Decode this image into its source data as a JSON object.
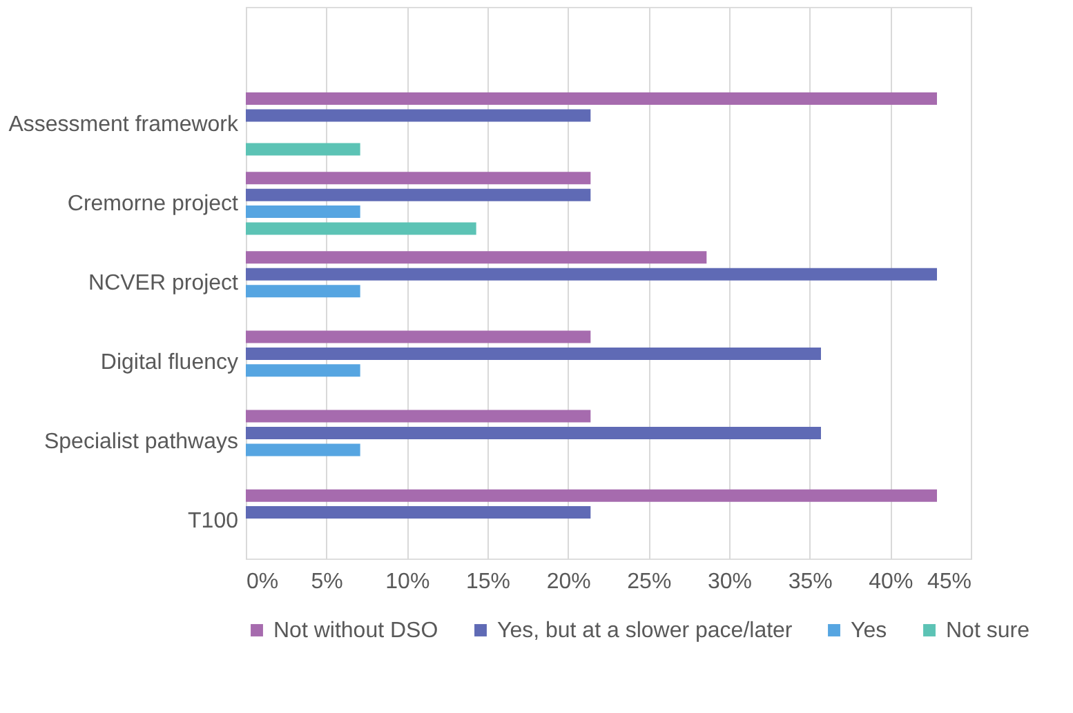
{
  "chart_data": {
    "type": "bar",
    "orientation": "horizontal",
    "categories": [
      null,
      "Assessment framework",
      "Cremorne project",
      "NCVER project",
      "Digital fluency",
      "Specialist pathways",
      "T100"
    ],
    "series": [
      {
        "name": "Not without DSO",
        "color": "#a66bae",
        "values": [
          null,
          42.9,
          21.4,
          28.6,
          21.4,
          21.4,
          42.9
        ]
      },
      {
        "name": "Yes, but at a slower pace/later",
        "color": "#5f6ab5",
        "values": [
          null,
          21.4,
          21.4,
          42.9,
          35.7,
          35.7,
          21.4
        ]
      },
      {
        "name": "Yes",
        "color": "#56a5e1",
        "values": [
          null,
          null,
          7.1,
          7.1,
          7.1,
          7.1,
          null
        ]
      },
      {
        "name": "Not sure",
        "color": "#5cc3b5",
        "values": [
          null,
          7.1,
          14.3,
          null,
          null,
          null,
          null
        ]
      }
    ],
    "xlim": [
      0,
      45
    ],
    "xticks": [
      {
        "value": 0,
        "label": "0%"
      },
      {
        "value": 5,
        "label": "5%"
      },
      {
        "value": 10,
        "label": "10%"
      },
      {
        "value": 15,
        "label": "15%"
      },
      {
        "value": 20,
        "label": "20%"
      },
      {
        "value": 25,
        "label": "25%"
      },
      {
        "value": 30,
        "label": "30%"
      },
      {
        "value": 35,
        "label": "35%"
      },
      {
        "value": 40,
        "label": "40%"
      },
      {
        "value": 45,
        "label": "45%"
      }
    ],
    "grid": "x",
    "legend": "bottom"
  }
}
